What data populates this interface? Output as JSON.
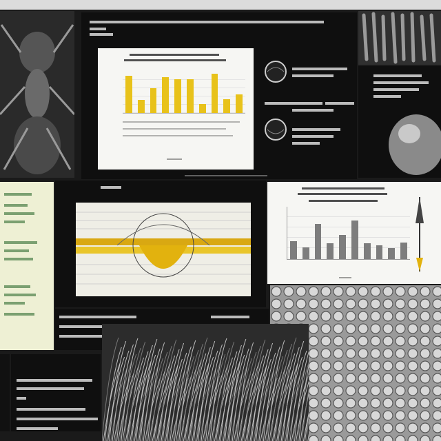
{
  "colors": {
    "page_bg": "#1a1a1a",
    "panel_dark": "#0f0f0f",
    "chart_bg": "#f6f6f3",
    "yellow_bar": "#e8c21a",
    "gray_bar": "#7d7d7d",
    "cream": "#eef0d4",
    "amber": "#e2b20e"
  },
  "charts": [
    {
      "type": "bar",
      "bar_color": "yellow",
      "relative_values": [
        0.94,
        0.33,
        0.63,
        0.92,
        0.86,
        0.86,
        0.22,
        1.0,
        0.35,
        0.48
      ],
      "grid": true,
      "legend": "none"
    },
    {
      "type": "bar",
      "bar_color": "gray",
      "relative_values": [
        0.36,
        0.24,
        0.7,
        0.32,
        0.48,
        0.78,
        0.32,
        0.28,
        0.22,
        0.33
      ],
      "grid": true,
      "legend": "none"
    }
  ],
  "icons": [
    "insect-photo",
    "grain-photo",
    "circle-icon",
    "sphere-photo",
    "amber-lens-diagram",
    "compass-needle",
    "hair-texture",
    "bubble-texture"
  ]
}
